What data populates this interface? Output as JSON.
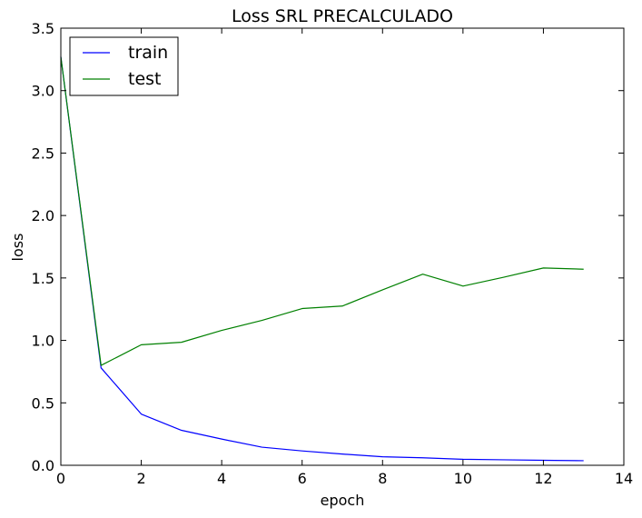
{
  "chart_data": {
    "type": "line",
    "title": "Loss SRL PRECALCULADO",
    "xlabel": "epoch",
    "ylabel": "loss",
    "xlim": [
      0,
      14
    ],
    "ylim": [
      0.0,
      3.5
    ],
    "xticks": [
      "0",
      "2",
      "4",
      "6",
      "8",
      "10",
      "12",
      "14"
    ],
    "yticks": [
      "0.0",
      "0.5",
      "1.0",
      "1.5",
      "2.0",
      "2.5",
      "3.0",
      "3.5"
    ],
    "grid": false,
    "legend_position": "top-left",
    "x": [
      0,
      1,
      2,
      3,
      4,
      5,
      6,
      7,
      8,
      9,
      10,
      11,
      12,
      13
    ],
    "series": [
      {
        "name": "train",
        "color": "#0000ff",
        "values": [
          3.27,
          0.78,
          0.41,
          0.28,
          0.21,
          0.145,
          0.115,
          0.09,
          0.068,
          0.06,
          0.048,
          0.044,
          0.04,
          0.037
        ]
      },
      {
        "name": "test",
        "color": "#008000",
        "values": [
          3.27,
          0.8,
          0.965,
          0.985,
          1.08,
          1.16,
          1.255,
          1.275,
          1.405,
          1.53,
          1.435,
          1.505,
          1.58,
          1.57
        ]
      }
    ]
  }
}
